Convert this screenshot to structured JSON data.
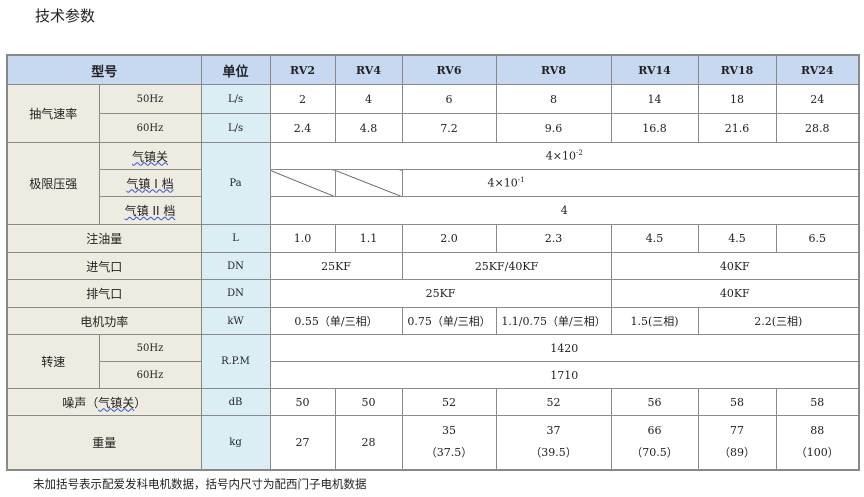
{
  "title": "技术参数",
  "header": {
    "model": "型号",
    "unit": "单位",
    "models": [
      "RV2",
      "RV4",
      "RV6",
      "RV8",
      "RV14",
      "RV18",
      "RV24"
    ]
  },
  "pump_speed": {
    "label": "抽气速率",
    "rows": [
      {
        "sub": "50Hz",
        "unit": "L/s",
        "values": [
          "2",
          "4",
          "6",
          "8",
          "14",
          "18",
          "24"
        ]
      },
      {
        "sub": "60Hz",
        "unit": "L/s",
        "values": [
          "2.4",
          "4.8",
          "7.2",
          "9.6",
          "16.8",
          "21.6",
          "28.8"
        ]
      }
    ]
  },
  "ultimate_pressure": {
    "label": "极限压强",
    "unit": "Pa",
    "rows": [
      {
        "sub": "气镇关",
        "value": "4×10",
        "exp": "-2"
      },
      {
        "sub": "气镇 I 档",
        "value": "4×10",
        "exp": "-1"
      },
      {
        "sub": "气镇 II 档",
        "value": "4"
      }
    ]
  },
  "oil": {
    "label": "注油量",
    "unit": "L",
    "values": [
      "1.0",
      "1.1",
      "2.0",
      "2.3",
      "4.5",
      "4.5",
      "6.5"
    ]
  },
  "inlet": {
    "label": "进气口",
    "unit": "DN",
    "values": [
      "25KF",
      "25KF/40KF",
      "40KF"
    ]
  },
  "outlet": {
    "label": "排气口",
    "unit": "DN",
    "values": [
      "25KF",
      "40KF"
    ]
  },
  "motor": {
    "label": "电机功率",
    "unit": "kW",
    "values": [
      "0.55（单/三相）",
      "0.75（单/三相）",
      "1.1/0.75（单/三相）",
      "1.5(三相)",
      "2.2(三相)"
    ]
  },
  "rpm": {
    "label": "转速",
    "unit": "R.P.M",
    "rows": [
      {
        "sub": "50Hz",
        "value": "1420"
      },
      {
        "sub": "60Hz",
        "value": "1710"
      }
    ]
  },
  "noise": {
    "label": "噪声（",
    "label_wavy": "气镇关",
    "label_end": "）",
    "unit": "dB",
    "values": [
      "50",
      "50",
      "52",
      "52",
      "56",
      "58",
      "58"
    ]
  },
  "weight": {
    "label": "重量",
    "unit": "kg",
    "values": [
      "27",
      "28",
      "35",
      "37",
      "66",
      "77",
      "88"
    ],
    "alt": [
      "",
      "",
      "（37.5）",
      "（39.5）",
      "（70.5）",
      "（89）",
      "（100）"
    ]
  },
  "footnote": "未加括号表示配爱发科电机数据，括号内尺寸为配西门子电机数据"
}
